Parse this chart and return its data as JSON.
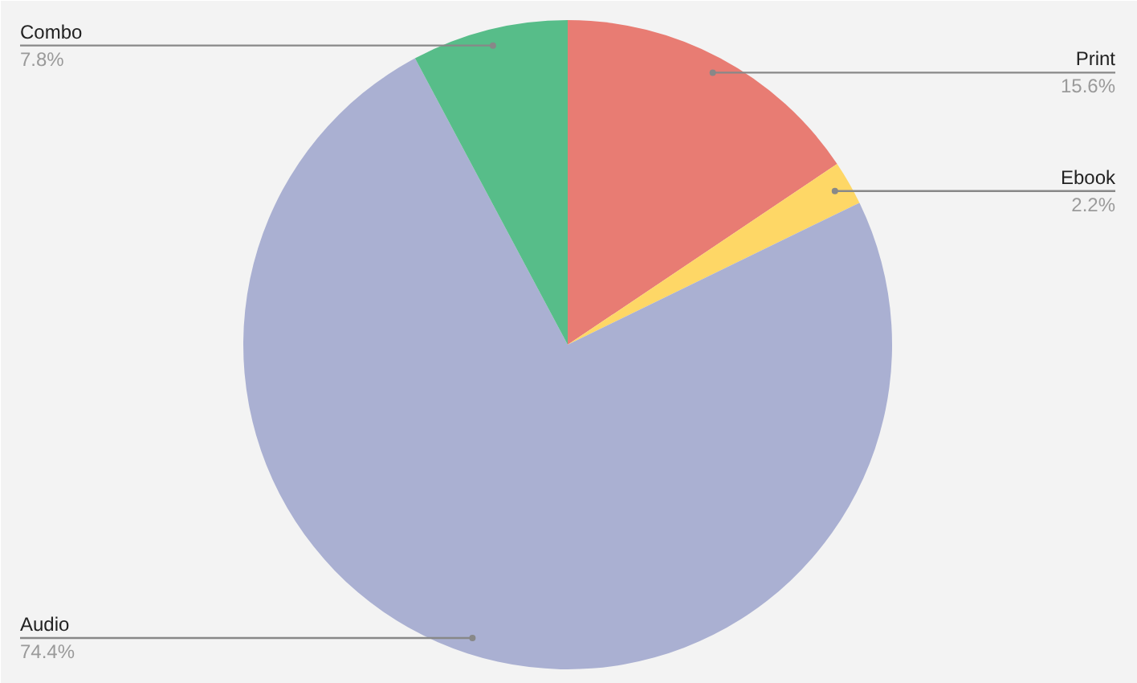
{
  "chart_data": {
    "type": "pie",
    "categories": [
      "Print",
      "Ebook",
      "Audio",
      "Combo"
    ],
    "values": [
      15.6,
      2.2,
      74.4,
      7.8
    ],
    "value_labels": [
      "15.6%",
      "2.2%",
      "74.4%",
      "7.8%"
    ],
    "colors": [
      "#e87c73",
      "#fed766",
      "#aab0d2",
      "#57bd89"
    ]
  }
}
